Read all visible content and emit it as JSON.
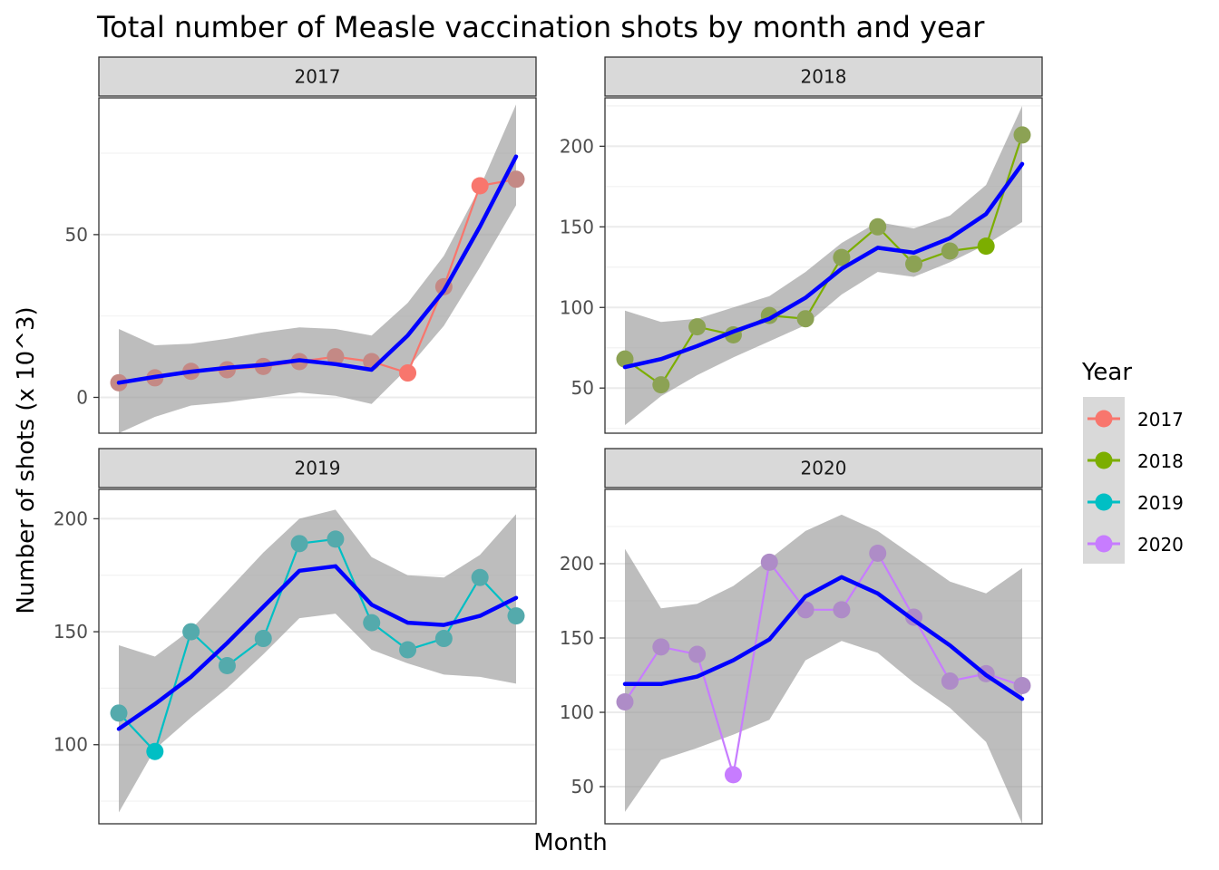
{
  "chart_data": {
    "type": "line",
    "title": "Total number of Measle vaccination shots by month and year",
    "xlabel": "Month",
    "ylabel": "Number of shots (x 10^3)",
    "legend": {
      "title": "Year",
      "position": "right",
      "entries": [
        {
          "name": "2017",
          "color": "#F8766D"
        },
        {
          "name": "2018",
          "color": "#7CAE00"
        },
        {
          "name": "2019",
          "color": "#00BFC4"
        },
        {
          "name": "2020",
          "color": "#C77CFF"
        }
      ]
    },
    "smooth_color": "#0000FF",
    "ribbon_color": "#999999",
    "x": [
      1,
      2,
      3,
      4,
      5,
      6,
      7,
      8,
      9,
      10,
      11,
      12
    ],
    "x_tick_labels": "none",
    "grid": true,
    "panels": [
      {
        "strip": "2017",
        "color": "#F8766D",
        "ylim": [
          -11,
          92
        ],
        "yticks": [
          0,
          50
        ],
        "values": [
          4.5,
          6.0,
          8.0,
          8.5,
          9.5,
          11.0,
          12.5,
          11.0,
          7.5,
          34.0,
          65.0,
          67.0
        ],
        "smooth": [
          4.5,
          6.3,
          7.9,
          9.1,
          10.0,
          11.4,
          10.2,
          8.5,
          19.0,
          32.8,
          52.5,
          74.0
        ],
        "ribbon_lower": [
          -11.0,
          -6.0,
          -2.5,
          -1.5,
          0.0,
          1.5,
          0.5,
          -2.0,
          9.0,
          22.0,
          40.0,
          59.0
        ],
        "ribbon_upper": [
          21.0,
          16.0,
          16.5,
          18.0,
          20.0,
          21.5,
          21.0,
          19.0,
          29.0,
          43.5,
          64.5,
          90.0
        ]
      },
      {
        "strip": "2018",
        "color": "#7CAE00",
        "ylim": [
          22,
          230
        ],
        "yticks": [
          50,
          100,
          150,
          200
        ],
        "values": [
          68,
          52,
          88,
          83,
          95,
          93,
          131,
          150,
          127,
          135,
          138,
          207
        ],
        "smooth": [
          63,
          68,
          76,
          85,
          93,
          106,
          124,
          137,
          134,
          143,
          158,
          189
        ],
        "ribbon_lower": [
          27,
          45,
          58,
          69,
          79,
          89,
          108,
          122,
          119,
          128,
          139,
          153
        ],
        "ribbon_upper": [
          98,
          91,
          93,
          100,
          107,
          122,
          140,
          153,
          149,
          157,
          176,
          225
        ]
      },
      {
        "strip": "2019",
        "color": "#00BFC4",
        "ylim": [
          65,
          213
        ],
        "yticks": [
          100,
          150,
          200
        ],
        "values": [
          114,
          97,
          150,
          135,
          147,
          189,
          191,
          154,
          142,
          147,
          174,
          157
        ],
        "smooth": [
          107,
          118,
          130,
          145,
          161,
          177,
          179,
          162,
          154,
          153,
          157,
          165
        ],
        "ribbon_lower": [
          70,
          98,
          112,
          125,
          140,
          156,
          158,
          142,
          136,
          131,
          130,
          127
        ],
        "ribbon_upper": [
          144,
          139,
          151,
          168,
          185,
          200,
          204,
          183,
          175,
          174,
          184,
          202
        ]
      },
      {
        "strip": "2020",
        "color": "#C77CFF",
        "ylim": [
          25,
          250
        ],
        "yticks": [
          50,
          100,
          150,
          200
        ],
        "values": [
          107,
          144,
          139,
          58,
          201,
          169,
          169,
          207,
          164,
          121,
          126,
          118
        ],
        "smooth": [
          119,
          119,
          124,
          135,
          149,
          178,
          191,
          180,
          162,
          145,
          125,
          109
        ],
        "ribbon_lower": [
          33,
          68,
          76,
          85,
          95,
          135,
          148,
          140,
          120,
          103,
          80,
          25
        ],
        "ribbon_upper": [
          210,
          170,
          173,
          185,
          203,
          222,
          233,
          222,
          205,
          188,
          180,
          197
        ]
      }
    ]
  }
}
